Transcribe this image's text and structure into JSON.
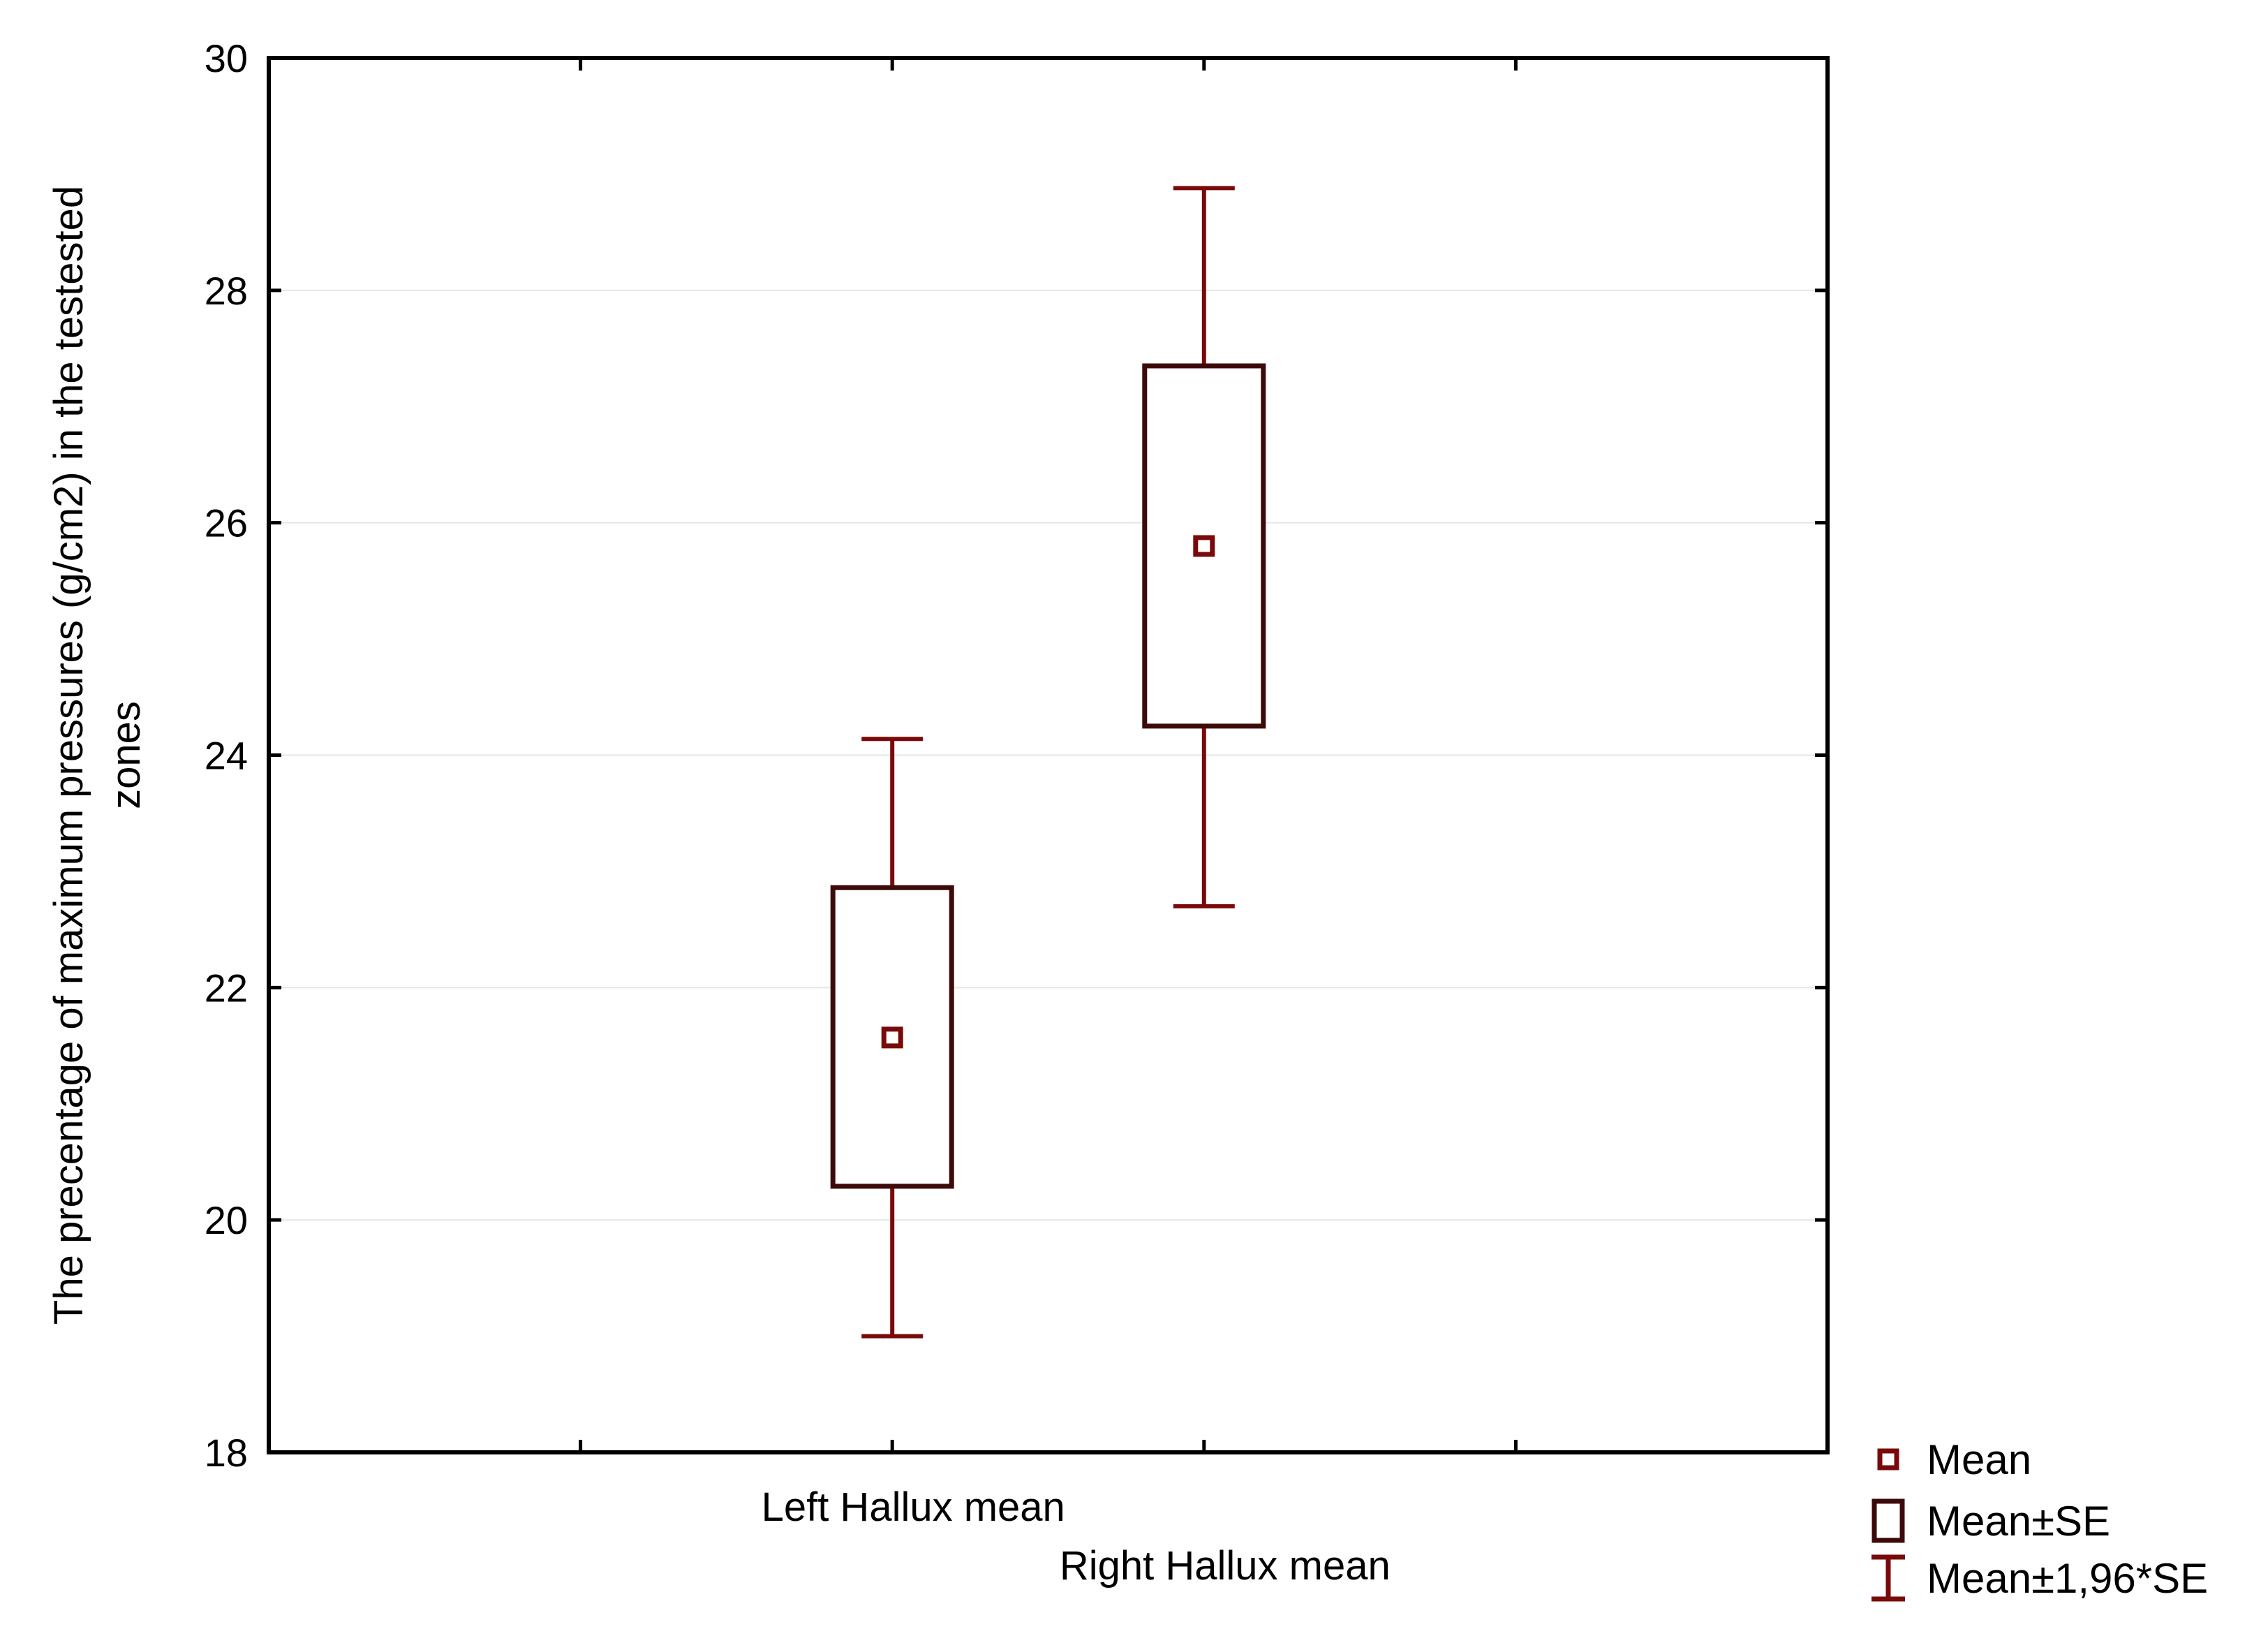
{
  "chart_data": {
    "type": "box",
    "categories": [
      "Left Hallux mean",
      "Right Hallux mean"
    ],
    "series": [
      {
        "name": "Mean",
        "values": [
          21.57,
          25.8
        ]
      },
      {
        "name": "Mean±SE",
        "low": [
          20.29,
          24.25
        ],
        "high": [
          22.86,
          27.35
        ]
      },
      {
        "name": "Mean±1,96*SE",
        "low": [
          19.0,
          22.7
        ],
        "high": [
          24.14,
          28.88
        ]
      }
    ],
    "ylabel_line1": "The precentage of maximum pressures (g/cm2) in the testested",
    "ylabel_line2": "zones",
    "ylim": [
      18,
      30
    ],
    "yticks": [
      "18",
      "20",
      "22",
      "24",
      "26",
      "28",
      "30"
    ],
    "grid": true,
    "legend_position": "bottom-right",
    "legend": [
      "Mean",
      "Mean±SE",
      "Mean±1,96*SE"
    ],
    "colors": {
      "whisker": "#7a0a0a",
      "box": "#3d0a0a",
      "mean": "#7a0a0a",
      "axis": "#000000",
      "grid": "#e6e6e6"
    }
  }
}
